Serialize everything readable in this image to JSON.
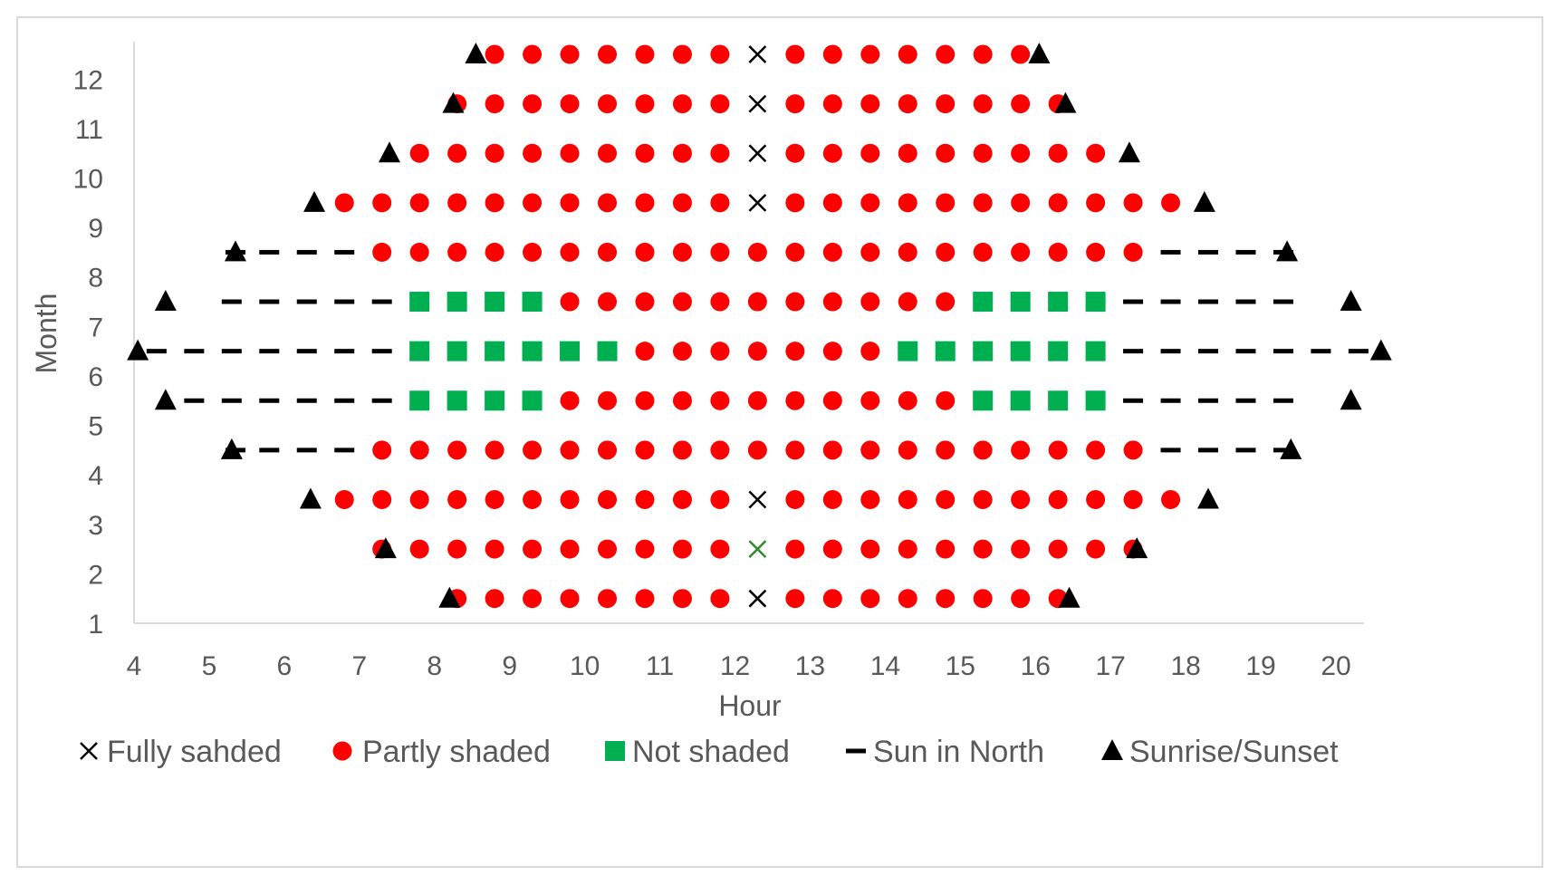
{
  "chart_data": {
    "type": "scatter",
    "title": "",
    "xlabel": "Hour",
    "ylabel": "Month",
    "xlim": [
      4,
      20.5
    ],
    "ylim": [
      1,
      12.5
    ],
    "x_ticks": [
      "4",
      "5",
      "6",
      "7",
      "8",
      "9",
      "10",
      "11",
      "12",
      "13",
      "14",
      "15",
      "16",
      "17",
      "18",
      "19",
      "20"
    ],
    "y_ticks": [
      "1",
      "2",
      "3",
      "4",
      "5",
      "6",
      "7",
      "8",
      "9",
      "10",
      "11",
      "12"
    ],
    "grid": false,
    "legend_position": "bottom",
    "colors": {
      "fully_shaded": "#000000",
      "fully_shaded_alt": "#2e8b2e",
      "partly_shaded": "#ff0000",
      "not_shaded": "#00b050",
      "sun_in_north": "#000000",
      "sunrise_sunset": "#000000",
      "axis": "#d9d9d9",
      "text": "#595959"
    },
    "series": [
      {
        "name": "Fully sahded",
        "marker": "x",
        "points": [
          [
            12.3,
            12.5
          ],
          [
            12.3,
            11.5
          ],
          [
            12.3,
            10.5
          ],
          [
            12.3,
            9.5
          ],
          [
            12.3,
            3.5
          ],
          [
            12.3,
            2.5
          ],
          [
            12.3,
            1.5
          ]
        ]
      },
      {
        "name": "Partly shaded",
        "marker": "circle",
        "rows": [
          {
            "y": 12.5,
            "x": [
              8.8,
              9.3,
              9.8,
              10.3,
              10.8,
              11.3,
              11.8,
              12.8,
              13.3,
              13.8,
              14.3,
              14.8,
              15.3,
              15.8
            ]
          },
          {
            "y": 11.5,
            "x": [
              8.3,
              8.8,
              9.3,
              9.8,
              10.3,
              10.8,
              11.3,
              11.8,
              12.8,
              13.3,
              13.8,
              14.3,
              14.8,
              15.3,
              15.8,
              16.3
            ]
          },
          {
            "y": 10.5,
            "x": [
              7.8,
              8.3,
              8.8,
              9.3,
              9.8,
              10.3,
              10.8,
              11.3,
              11.8,
              12.8,
              13.3,
              13.8,
              14.3,
              14.8,
              15.3,
              15.8,
              16.3,
              16.8
            ]
          },
          {
            "y": 9.5,
            "x": [
              6.8,
              7.3,
              7.8,
              8.3,
              8.8,
              9.3,
              9.8,
              10.3,
              10.8,
              11.3,
              11.8,
              12.8,
              13.3,
              13.8,
              14.3,
              14.8,
              15.3,
              15.8,
              16.3,
              16.8,
              17.3,
              17.8
            ]
          },
          {
            "y": 8.5,
            "x": [
              7.3,
              7.8,
              8.3,
              8.8,
              9.3,
              9.8,
              10.3,
              10.8,
              11.3,
              11.8,
              12.3,
              12.8,
              13.3,
              13.8,
              14.3,
              14.8,
              15.3,
              15.8,
              16.3,
              16.8,
              17.3
            ]
          },
          {
            "y": 7.5,
            "x": [
              9.8,
              10.3,
              10.8,
              11.3,
              11.8,
              12.3,
              12.8,
              13.3,
              13.8,
              14.3,
              14.8
            ]
          },
          {
            "y": 6.5,
            "x": [
              10.8,
              11.3,
              11.8,
              12.3,
              12.8,
              13.3,
              13.8
            ]
          },
          {
            "y": 5.5,
            "x": [
              9.8,
              10.3,
              10.8,
              11.3,
              11.8,
              12.3,
              12.8,
              13.3,
              13.8,
              14.3,
              14.8
            ]
          },
          {
            "y": 4.5,
            "x": [
              7.3,
              7.8,
              8.3,
              8.8,
              9.3,
              9.8,
              10.3,
              10.8,
              11.3,
              11.8,
              12.3,
              12.8,
              13.3,
              13.8,
              14.3,
              14.8,
              15.3,
              15.8,
              16.3,
              16.8,
              17.3
            ]
          },
          {
            "y": 3.5,
            "x": [
              6.8,
              7.3,
              7.8,
              8.3,
              8.8,
              9.3,
              9.8,
              10.3,
              10.8,
              11.3,
              11.8,
              12.8,
              13.3,
              13.8,
              14.3,
              14.8,
              15.3,
              15.8,
              16.3,
              16.8,
              17.3,
              17.8
            ]
          },
          {
            "y": 2.5,
            "x": [
              7.3,
              7.8,
              8.3,
              8.8,
              9.3,
              9.8,
              10.3,
              10.8,
              11.3,
              11.8,
              12.8,
              13.3,
              13.8,
              14.3,
              14.8,
              15.3,
              15.8,
              16.3,
              16.8,
              17.3
            ]
          },
          {
            "y": 1.5,
            "x": [
              8.3,
              8.8,
              9.3,
              9.8,
              10.3,
              10.8,
              11.3,
              11.8,
              12.8,
              13.3,
              13.8,
              14.3,
              14.8,
              15.3,
              15.8,
              16.3
            ]
          }
        ]
      },
      {
        "name": "Not shaded",
        "marker": "square",
        "rows": [
          {
            "y": 7.5,
            "x": [
              7.8,
              8.3,
              8.8,
              9.3,
              15.3,
              15.8,
              16.3,
              16.8
            ]
          },
          {
            "y": 6.5,
            "x": [
              7.8,
              8.3,
              8.8,
              9.3,
              9.8,
              10.3,
              14.3,
              14.8,
              15.3,
              15.8,
              16.3,
              16.8
            ]
          },
          {
            "y": 5.5,
            "x": [
              7.8,
              8.3,
              8.8,
              9.3,
              15.3,
              15.8,
              16.3,
              16.8
            ]
          }
        ]
      },
      {
        "name": "Sun in North",
        "marker": "dash",
        "rows": [
          {
            "y": 8.5,
            "x": [
              5.35,
              5.8,
              6.3,
              6.8,
              17.8,
              18.3,
              18.8,
              19.3
            ]
          },
          {
            "y": 7.5,
            "x": [
              5.3,
              5.8,
              6.3,
              6.8,
              7.3,
              17.3,
              17.8,
              18.3,
              18.8,
              19.3
            ]
          },
          {
            "y": 6.5,
            "x": [
              4.3,
              4.8,
              5.3,
              5.8,
              6.3,
              6.8,
              7.3,
              17.3,
              17.8,
              18.3,
              18.8,
              19.3,
              19.8,
              20.3
            ]
          },
          {
            "y": 5.5,
            "x": [
              4.8,
              5.3,
              5.8,
              6.3,
              6.8,
              7.3,
              17.3,
              17.8,
              18.3,
              18.8,
              19.3
            ]
          },
          {
            "y": 4.5,
            "x": [
              5.35,
              5.8,
              6.3,
              6.8,
              17.8,
              18.3,
              18.8,
              19.3
            ]
          }
        ]
      },
      {
        "name": "Sunrise/Sunset",
        "marker": "triangle",
        "points": [
          [
            8.55,
            12.5
          ],
          [
            16.05,
            12.5
          ],
          [
            8.25,
            11.5
          ],
          [
            16.4,
            11.5
          ],
          [
            7.4,
            10.5
          ],
          [
            17.25,
            10.5
          ],
          [
            6.4,
            9.5
          ],
          [
            18.25,
            9.5
          ],
          [
            5.35,
            8.5
          ],
          [
            19.35,
            8.5
          ],
          [
            4.42,
            7.5
          ],
          [
            20.2,
            7.5
          ],
          [
            4.05,
            6.5
          ],
          [
            20.6,
            6.5
          ],
          [
            4.42,
            5.5
          ],
          [
            20.2,
            5.5
          ],
          [
            5.3,
            4.5
          ],
          [
            19.4,
            4.5
          ],
          [
            6.35,
            3.5
          ],
          [
            18.3,
            3.5
          ],
          [
            7.35,
            2.5
          ],
          [
            17.35,
            2.5
          ],
          [
            8.2,
            1.5
          ],
          [
            16.45,
            1.5
          ]
        ]
      }
    ]
  }
}
